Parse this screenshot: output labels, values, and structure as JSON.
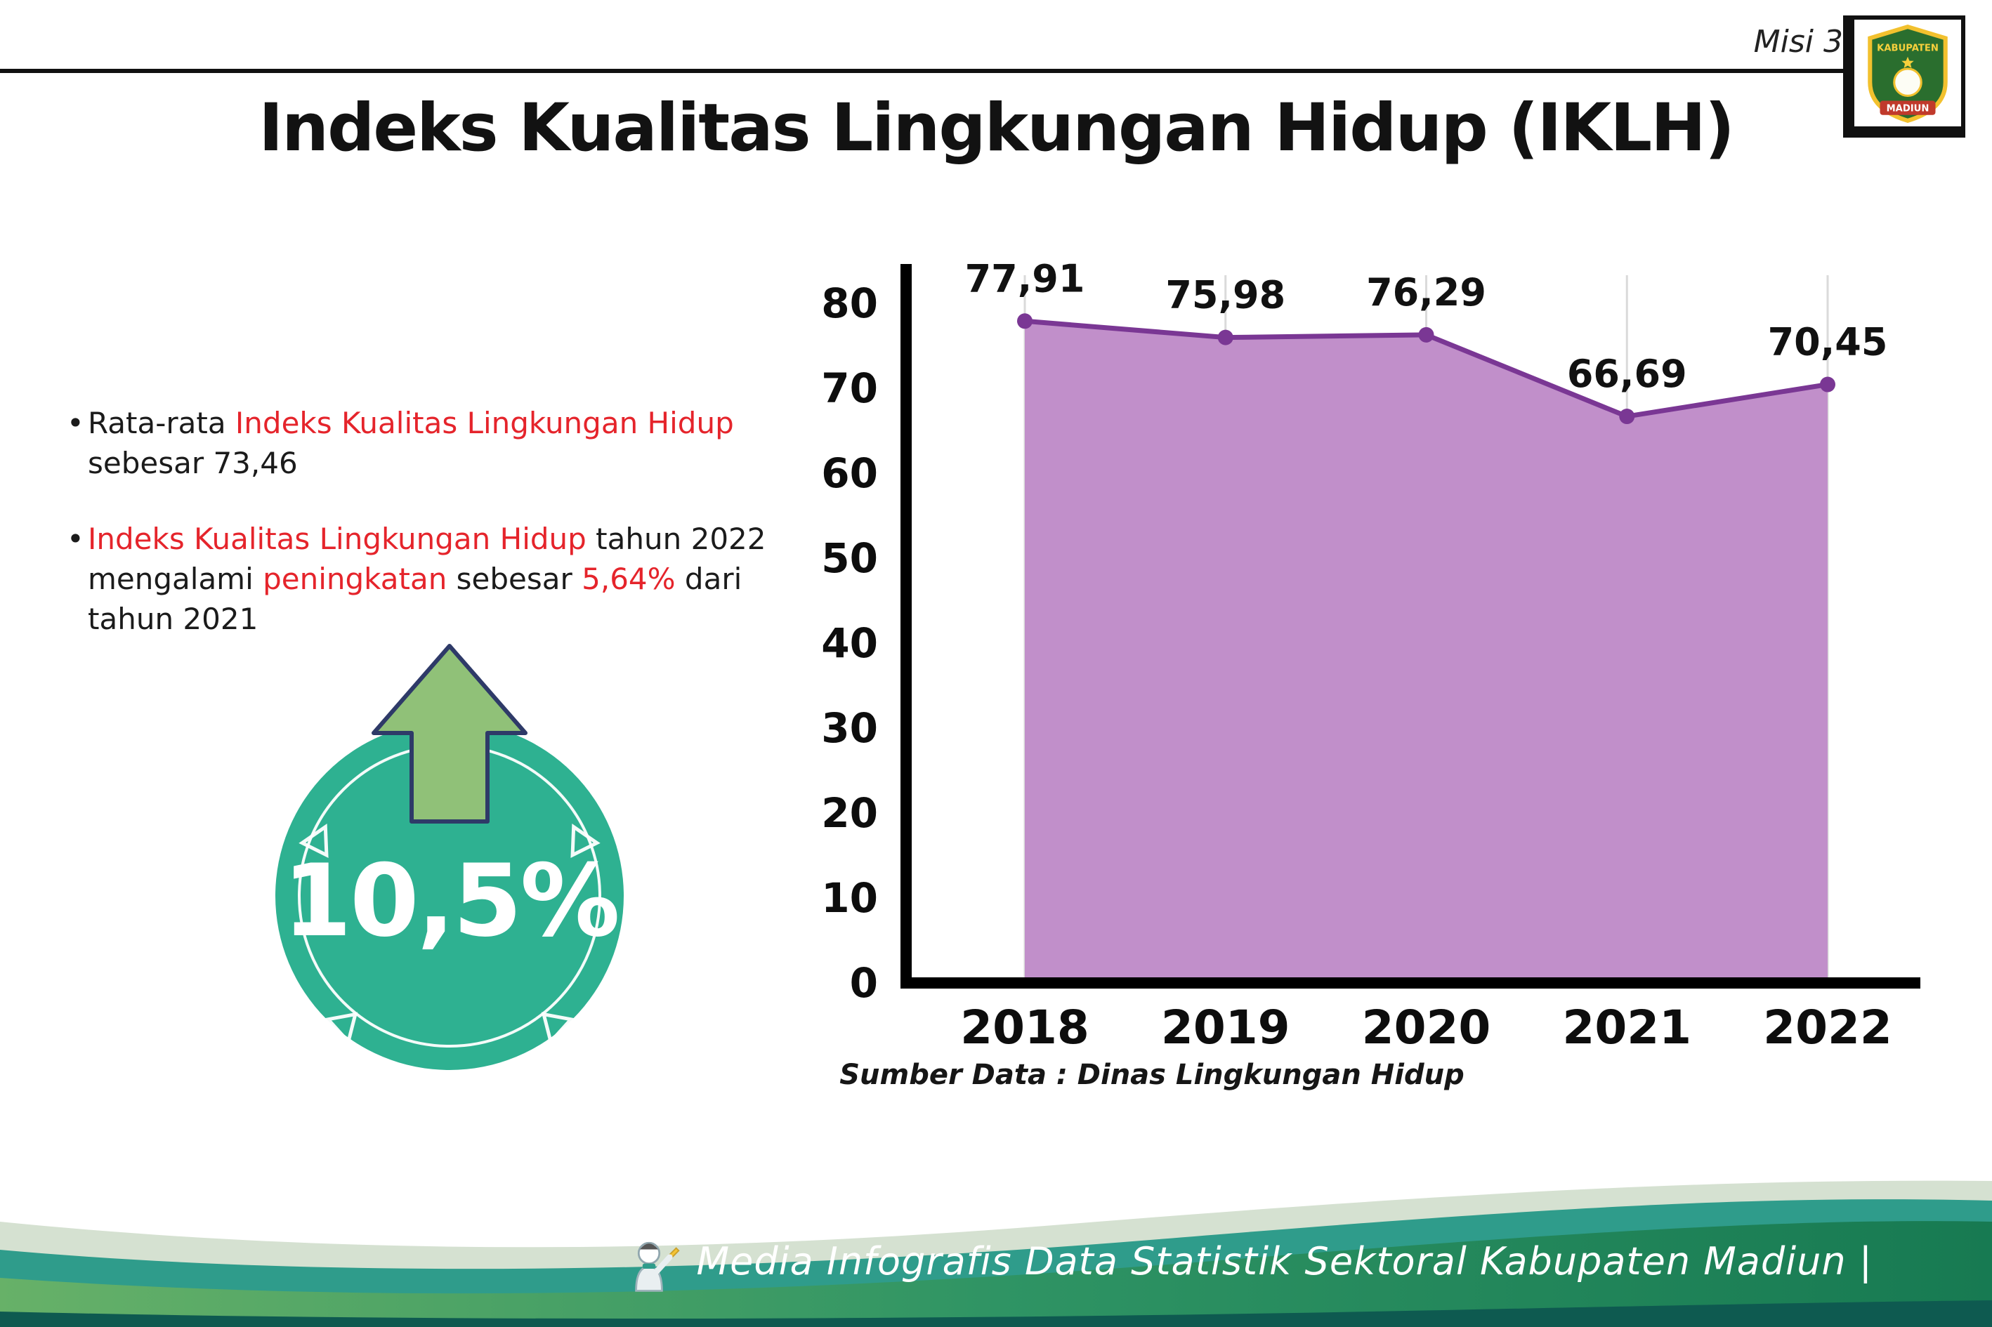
{
  "header": {
    "misi_label": "Misi 3",
    "title": "Indeks Kualitas Lingkungan Hidup (IKLH)",
    "logo": {
      "top_text": "KABUPATEN",
      "bottom_text": "MADIUN"
    }
  },
  "bullet_glyph": "•",
  "key_points": [
    {
      "segments": [
        {
          "text": "Rata-rata ",
          "highlight": false
        },
        {
          "text": "Indeks Kualitas Lingkungan Hidup",
          "highlight": true
        },
        {
          "text": " sebesar 73,46",
          "highlight": false
        }
      ]
    },
    {
      "segments": [
        {
          "text": "Indeks Kualitas Lingkungan Hidup",
          "highlight": true
        },
        {
          "text": " tahun 2022 mengalami ",
          "highlight": false
        },
        {
          "text": "peningkatan",
          "highlight": true
        },
        {
          "text": " sebesar ",
          "highlight": false
        },
        {
          "text": "5,64%",
          "highlight": true
        },
        {
          "text": " dari tahun 2021",
          "highlight": false
        }
      ]
    }
  ],
  "badge": {
    "value": "10,5%"
  },
  "colors": {
    "highlight_red": "#e5242b",
    "badge_teal": "#2eb191",
    "arrow_green": "#90c178",
    "arrow_outline": "#2e3a68"
  },
  "chart_data": {
    "type": "area",
    "title": "",
    "categories": [
      "2018",
      "2019",
      "2020",
      "2021",
      "2022"
    ],
    "values": [
      77.91,
      75.98,
      76.29,
      66.69,
      70.45
    ],
    "labels": [
      "77,91",
      "75,98",
      "76,29",
      "66,69",
      "70,45"
    ],
    "xlabel": "",
    "ylabel": "",
    "ylim": [
      0,
      80
    ],
    "ytick_step": 10,
    "grid": "vertical",
    "legend": "none",
    "colors": {
      "area": "#c18fca",
      "line": "#7a3794"
    },
    "source": "Sumber Data : Dinas Lingkungan Hidup"
  },
  "footer": {
    "credit": "Media Infografis Data Statistik Sektoral Kabupaten Madiun |"
  }
}
